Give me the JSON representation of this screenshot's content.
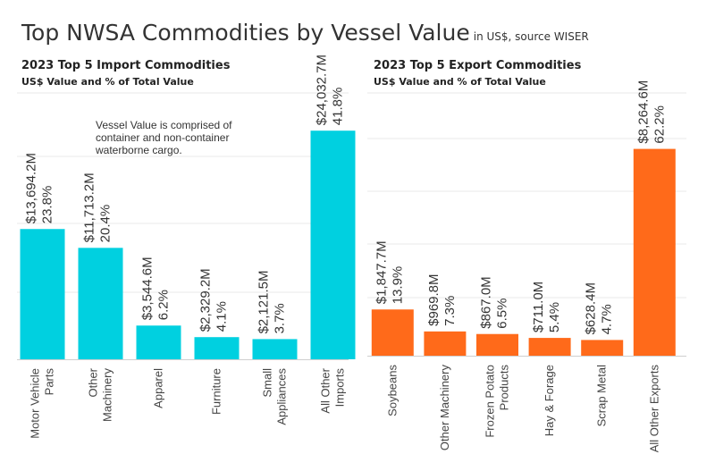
{
  "title": "Top NWSA Commodities by Vessel Value",
  "title_note": "in US$, source WISER",
  "note_lines": [
    "Vessel Value is comprised of",
    "container and non-container",
    "waterborne cargo."
  ],
  "chart_data": [
    {
      "type": "bar",
      "title": "2023 Top 5 Import Commodities",
      "subtitle": "US$ Value and % of Total Value",
      "color": "#00D0E0",
      "ylim": [
        0,
        28000
      ],
      "grid": true,
      "categories": [
        [
          "Motor Vehicle",
          "Parts"
        ],
        [
          "Other",
          "Machinery"
        ],
        [
          "Apparel"
        ],
        [
          "Furniture"
        ],
        [
          "Small",
          "Appliances"
        ],
        [
          "All Other",
          "Imports"
        ]
      ],
      "values": [
        13694.2,
        11713.2,
        3544.6,
        2329.2,
        2121.5,
        24032.7
      ],
      "value_labels": [
        "$13,694.2M",
        "$11,713.2M",
        "$3,544.6M",
        "$2,329.2M",
        "$2,121.5M",
        "$24,032.7M"
      ],
      "percent_labels": [
        "23.8%",
        "20.4%",
        "6.2%",
        "4.1%",
        "3.7%",
        "41.8%"
      ]
    },
    {
      "type": "bar",
      "title": "2023 Top 5 Export Commodities",
      "subtitle": "US$ Value and % of Total Value",
      "color": "#FF6A1A",
      "ylim": [
        0,
        10500
      ],
      "grid": true,
      "categories": [
        [
          "Soybeans"
        ],
        [
          "Other Machinery"
        ],
        [
          "Frozen Potato",
          "Products"
        ],
        [
          "Hay & Forage"
        ],
        [
          "Scrap Metal"
        ],
        [
          "All Other Exports"
        ]
      ],
      "values": [
        1847.7,
        969.8,
        867.0,
        711.0,
        628.4,
        8264.6
      ],
      "value_labels": [
        "$1,847.7M",
        "$969.8M",
        "$867.0M",
        "$711.0M",
        "$628.4M",
        "$8,264.6M"
      ],
      "percent_labels": [
        "13.9%",
        "7.3%",
        "6.5%",
        "5.4%",
        "4.7%",
        "62.2%"
      ]
    }
  ]
}
